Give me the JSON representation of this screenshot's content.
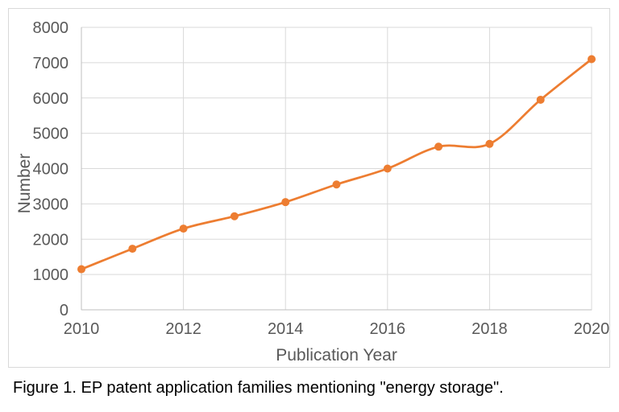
{
  "figure": {
    "caption": "Figure 1. EP patent application families mentioning \"energy storage\"."
  },
  "chart_data": {
    "type": "line",
    "title": "",
    "xlabel": "Publication Year",
    "ylabel": "Number",
    "x": [
      2010,
      2011,
      2012,
      2013,
      2014,
      2015,
      2016,
      2017,
      2018,
      2019,
      2020
    ],
    "values": [
      1150,
      1730,
      2300,
      2650,
      3050,
      3550,
      4000,
      4620,
      4700,
      5950,
      7100
    ],
    "ylim": [
      0,
      8000
    ],
    "ytick_step": 1000,
    "yticks": [
      0,
      1000,
      2000,
      3000,
      4000,
      5000,
      6000,
      7000,
      8000
    ],
    "xticks": [
      2010,
      2012,
      2014,
      2016,
      2018,
      2020
    ],
    "grid": true,
    "legend": "none",
    "smooth_line": true,
    "marker": "circle",
    "colors": {
      "line": "#ED7D31",
      "marker": "#ED7D31",
      "gridline": "#D9D9D9",
      "axis_line": "#BFBFBF",
      "plot_border": "#D9D9D9",
      "tick_label": "#595959",
      "axis_title": "#595959",
      "caption_text": "#000000",
      "chart_border": "#D9D9D9",
      "background": "#FFFFFF"
    }
  }
}
